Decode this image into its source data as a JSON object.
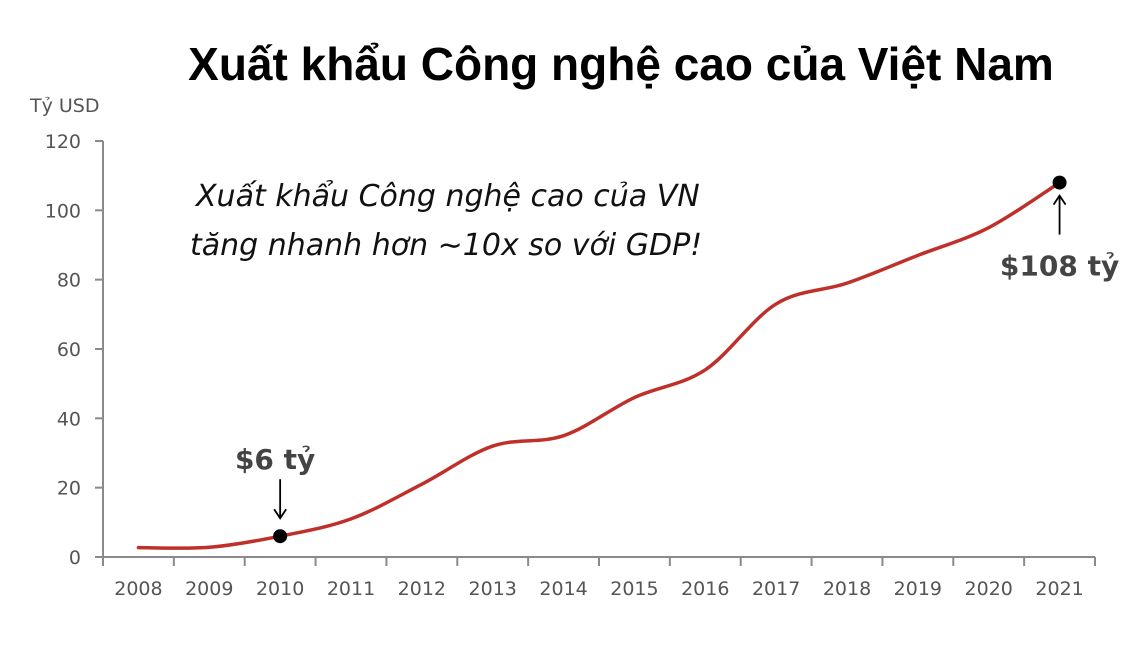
{
  "chart_data": {
    "type": "line",
    "title": "Xuất khẩu Công nghệ cao của Việt Nam",
    "ylabel": "Tỷ USD",
    "xlabel": "",
    "x": [
      "2008",
      "2009",
      "2010",
      "2011",
      "2012",
      "2013",
      "2014",
      "2015",
      "2016",
      "2017",
      "2018",
      "2019",
      "2020",
      "2021"
    ],
    "series": [
      {
        "color": "#c0302a",
        "values": [
          2.7,
          2.8,
          6,
          11,
          21,
          32,
          35,
          46,
          54,
          73,
          79,
          87,
          95,
          108
        ]
      }
    ],
    "ylim": [
      0,
      120
    ],
    "yticks": [
      0,
      20,
      40,
      60,
      80,
      100,
      120
    ],
    "grid": false,
    "annotation": {
      "line1": "Xuất khẩu Công nghệ cao của VN",
      "line2": "tăng nhanh hơn ∼10x so với GDP!"
    },
    "callouts": [
      {
        "text": "$6 tỷ",
        "x": "2010",
        "y": 6,
        "placement": "above"
      },
      {
        "text": "$108 tỷ",
        "x": "2021",
        "y": 108,
        "placement": "below"
      }
    ]
  }
}
